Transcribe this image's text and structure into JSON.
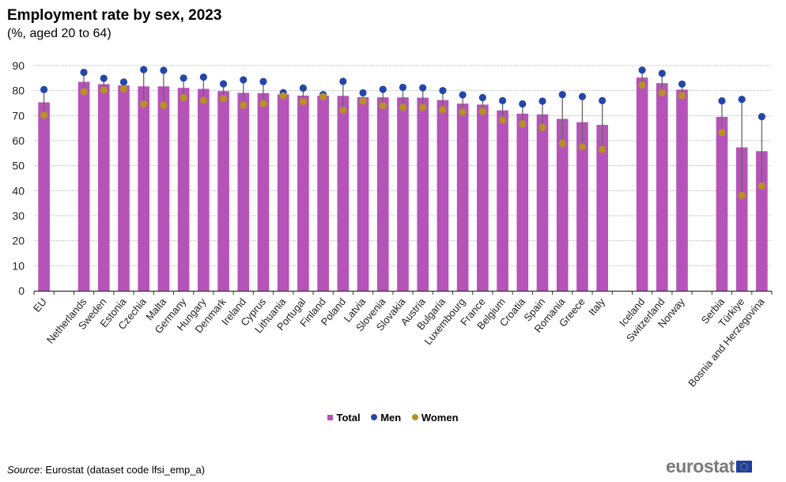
{
  "colors": {
    "total": "#b653b8",
    "men": "#2446a8",
    "women": "#b59322",
    "grid": "#c8c8c8",
    "axis": "#333333",
    "connector": "#666666"
  },
  "legend": {
    "total": "Total",
    "men": "Men",
    "women": "Women"
  },
  "source": {
    "label": "Source",
    "text": ": Eurostat (dataset code lfsi_emp_a)"
  },
  "logo": {
    "text": "eurostat"
  },
  "chart_data": {
    "type": "bar",
    "title": "Employment rate by sex, 2023",
    "subtitle": "(%, aged 20 to 64)",
    "xlabel": "",
    "ylabel": "",
    "ylim": [
      0,
      90
    ],
    "yticks": [
      0,
      10,
      20,
      30,
      40,
      50,
      60,
      70,
      80,
      90
    ],
    "grid": true,
    "legend_position": "bottom-center",
    "categories": [
      "EU",
      "",
      "Netherlands",
      "Sweden",
      "Estonia",
      "Czechia",
      "Malta",
      "Germany",
      "Hungary",
      "Denmark",
      "Ireland",
      "Cyprus",
      "Lithuania",
      "Portugal",
      "Finland",
      "Poland",
      "Latvia",
      "Slovenia",
      "Slovakia",
      "Austria",
      "Bulgaria",
      "Luxembourg",
      "France",
      "Belgium",
      "Croatia",
      "Spain",
      "Romania",
      "Greece",
      "Italy",
      "",
      "Iceland",
      "Switzerland",
      "Norway",
      "",
      "Serbia",
      "Türkiye",
      "Bosnia and Herzegovina"
    ],
    "series": [
      {
        "name": "Total",
        "type": "bar",
        "values": [
          75.3,
          null,
          83.5,
          82.6,
          82.1,
          81.7,
          81.7,
          81.1,
          80.7,
          79.8,
          79.1,
          79.0,
          78.5,
          78.0,
          78.0,
          77.9,
          77.4,
          77.3,
          77.3,
          77.2,
          76.2,
          74.8,
          74.4,
          72.1,
          70.8,
          70.5,
          68.7,
          67.4,
          66.3,
          null,
          85.2,
          83.0,
          80.4,
          null,
          69.5,
          57.3,
          55.8
        ]
      },
      {
        "name": "Men",
        "type": "dot",
        "values": [
          80.4,
          null,
          87.3,
          84.9,
          83.4,
          88.4,
          88.1,
          85.0,
          85.4,
          82.7,
          84.3,
          83.6,
          79.2,
          81.0,
          78.4,
          83.7,
          79.1,
          80.5,
          81.3,
          81.1,
          80.0,
          78.3,
          77.2,
          76.0,
          74.7,
          75.8,
          78.4,
          77.6,
          76.0,
          null,
          88.2,
          86.9,
          82.6,
          null,
          75.9,
          76.5,
          69.6
        ]
      },
      {
        "name": "Women",
        "type": "dot",
        "values": [
          70.2,
          null,
          79.6,
          80.2,
          80.7,
          74.6,
          74.1,
          77.2,
          76.1,
          76.8,
          74.2,
          74.8,
          77.9,
          75.6,
          77.6,
          72.2,
          75.8,
          74.0,
          73.3,
          73.3,
          72.4,
          71.4,
          71.7,
          68.2,
          66.7,
          65.3,
          58.9,
          57.5,
          56.5,
          null,
          82.2,
          79.1,
          78.0,
          null,
          63.2,
          38.1,
          41.9
        ]
      }
    ]
  }
}
